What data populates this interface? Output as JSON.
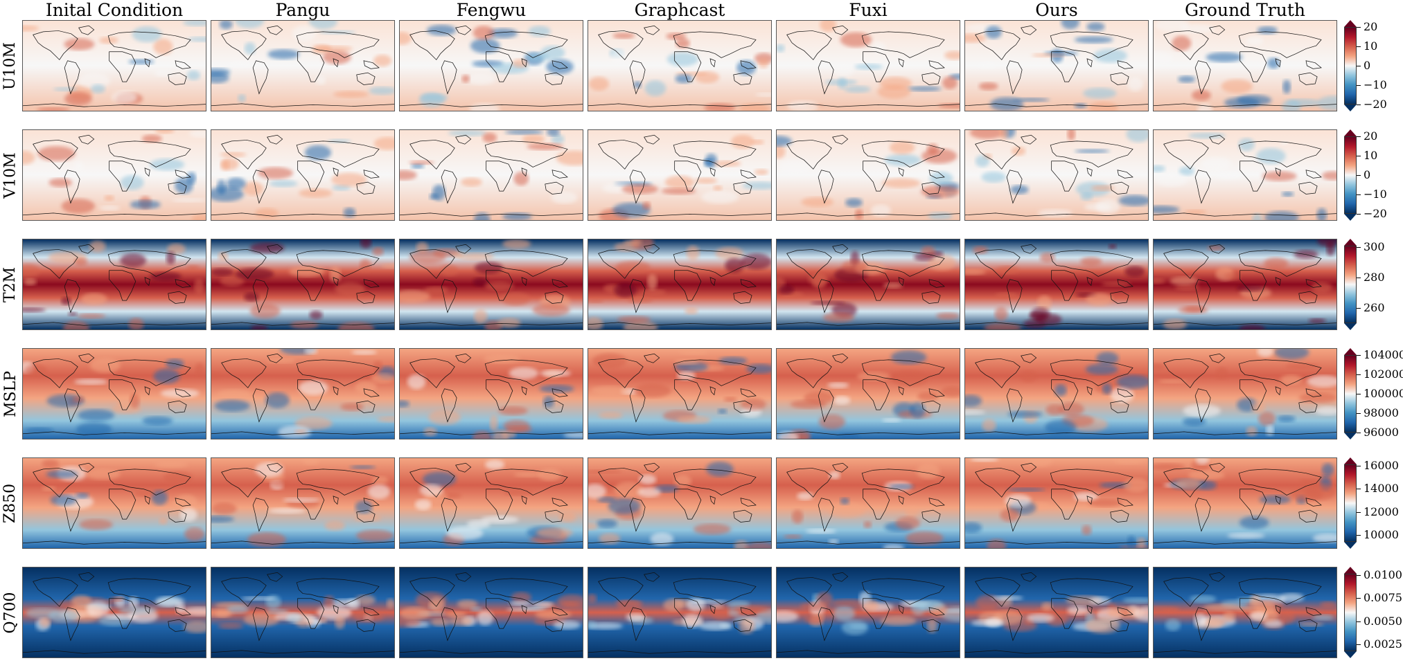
{
  "figure": {
    "columns": [
      "Inital Condition",
      "Pangu",
      "Fengwu",
      "Graphcast",
      "Fuxi",
      "Ours",
      "Ground Truth"
    ],
    "rows": [
      {
        "label": "U10M",
        "theme": "signed",
        "colorbar_ticks": [
          "20",
          "10",
          "0",
          "−10",
          "−20"
        ]
      },
      {
        "label": "V10M",
        "theme": "signed",
        "colorbar_ticks": [
          "20",
          "10",
          "0",
          "−10",
          "−20"
        ]
      },
      {
        "label": "T2M",
        "theme": "warm-band",
        "colorbar_ticks": [
          "300",
          "280",
          "260"
        ]
      },
      {
        "label": "MSLP",
        "theme": "pressure",
        "colorbar_ticks": [
          "104000",
          "102000",
          "100000",
          "98000",
          "96000"
        ]
      },
      {
        "label": "Z850",
        "theme": "pressure",
        "colorbar_ticks": [
          "16000",
          "14000",
          "12000",
          "10000"
        ]
      },
      {
        "label": "Q700",
        "theme": "moisture",
        "colorbar_ticks": [
          "0.0100",
          "0.0075",
          "0.0050",
          "0.0025"
        ]
      }
    ],
    "colormap": "RdBu_r",
    "colors": {
      "deep_blue": "#053061",
      "blue": "#2166ac",
      "light_blue": "#92c5de",
      "white": "#f7f7f7",
      "light_red": "#f4a582",
      "red": "#d6604d",
      "deep_red": "#67001f"
    }
  }
}
